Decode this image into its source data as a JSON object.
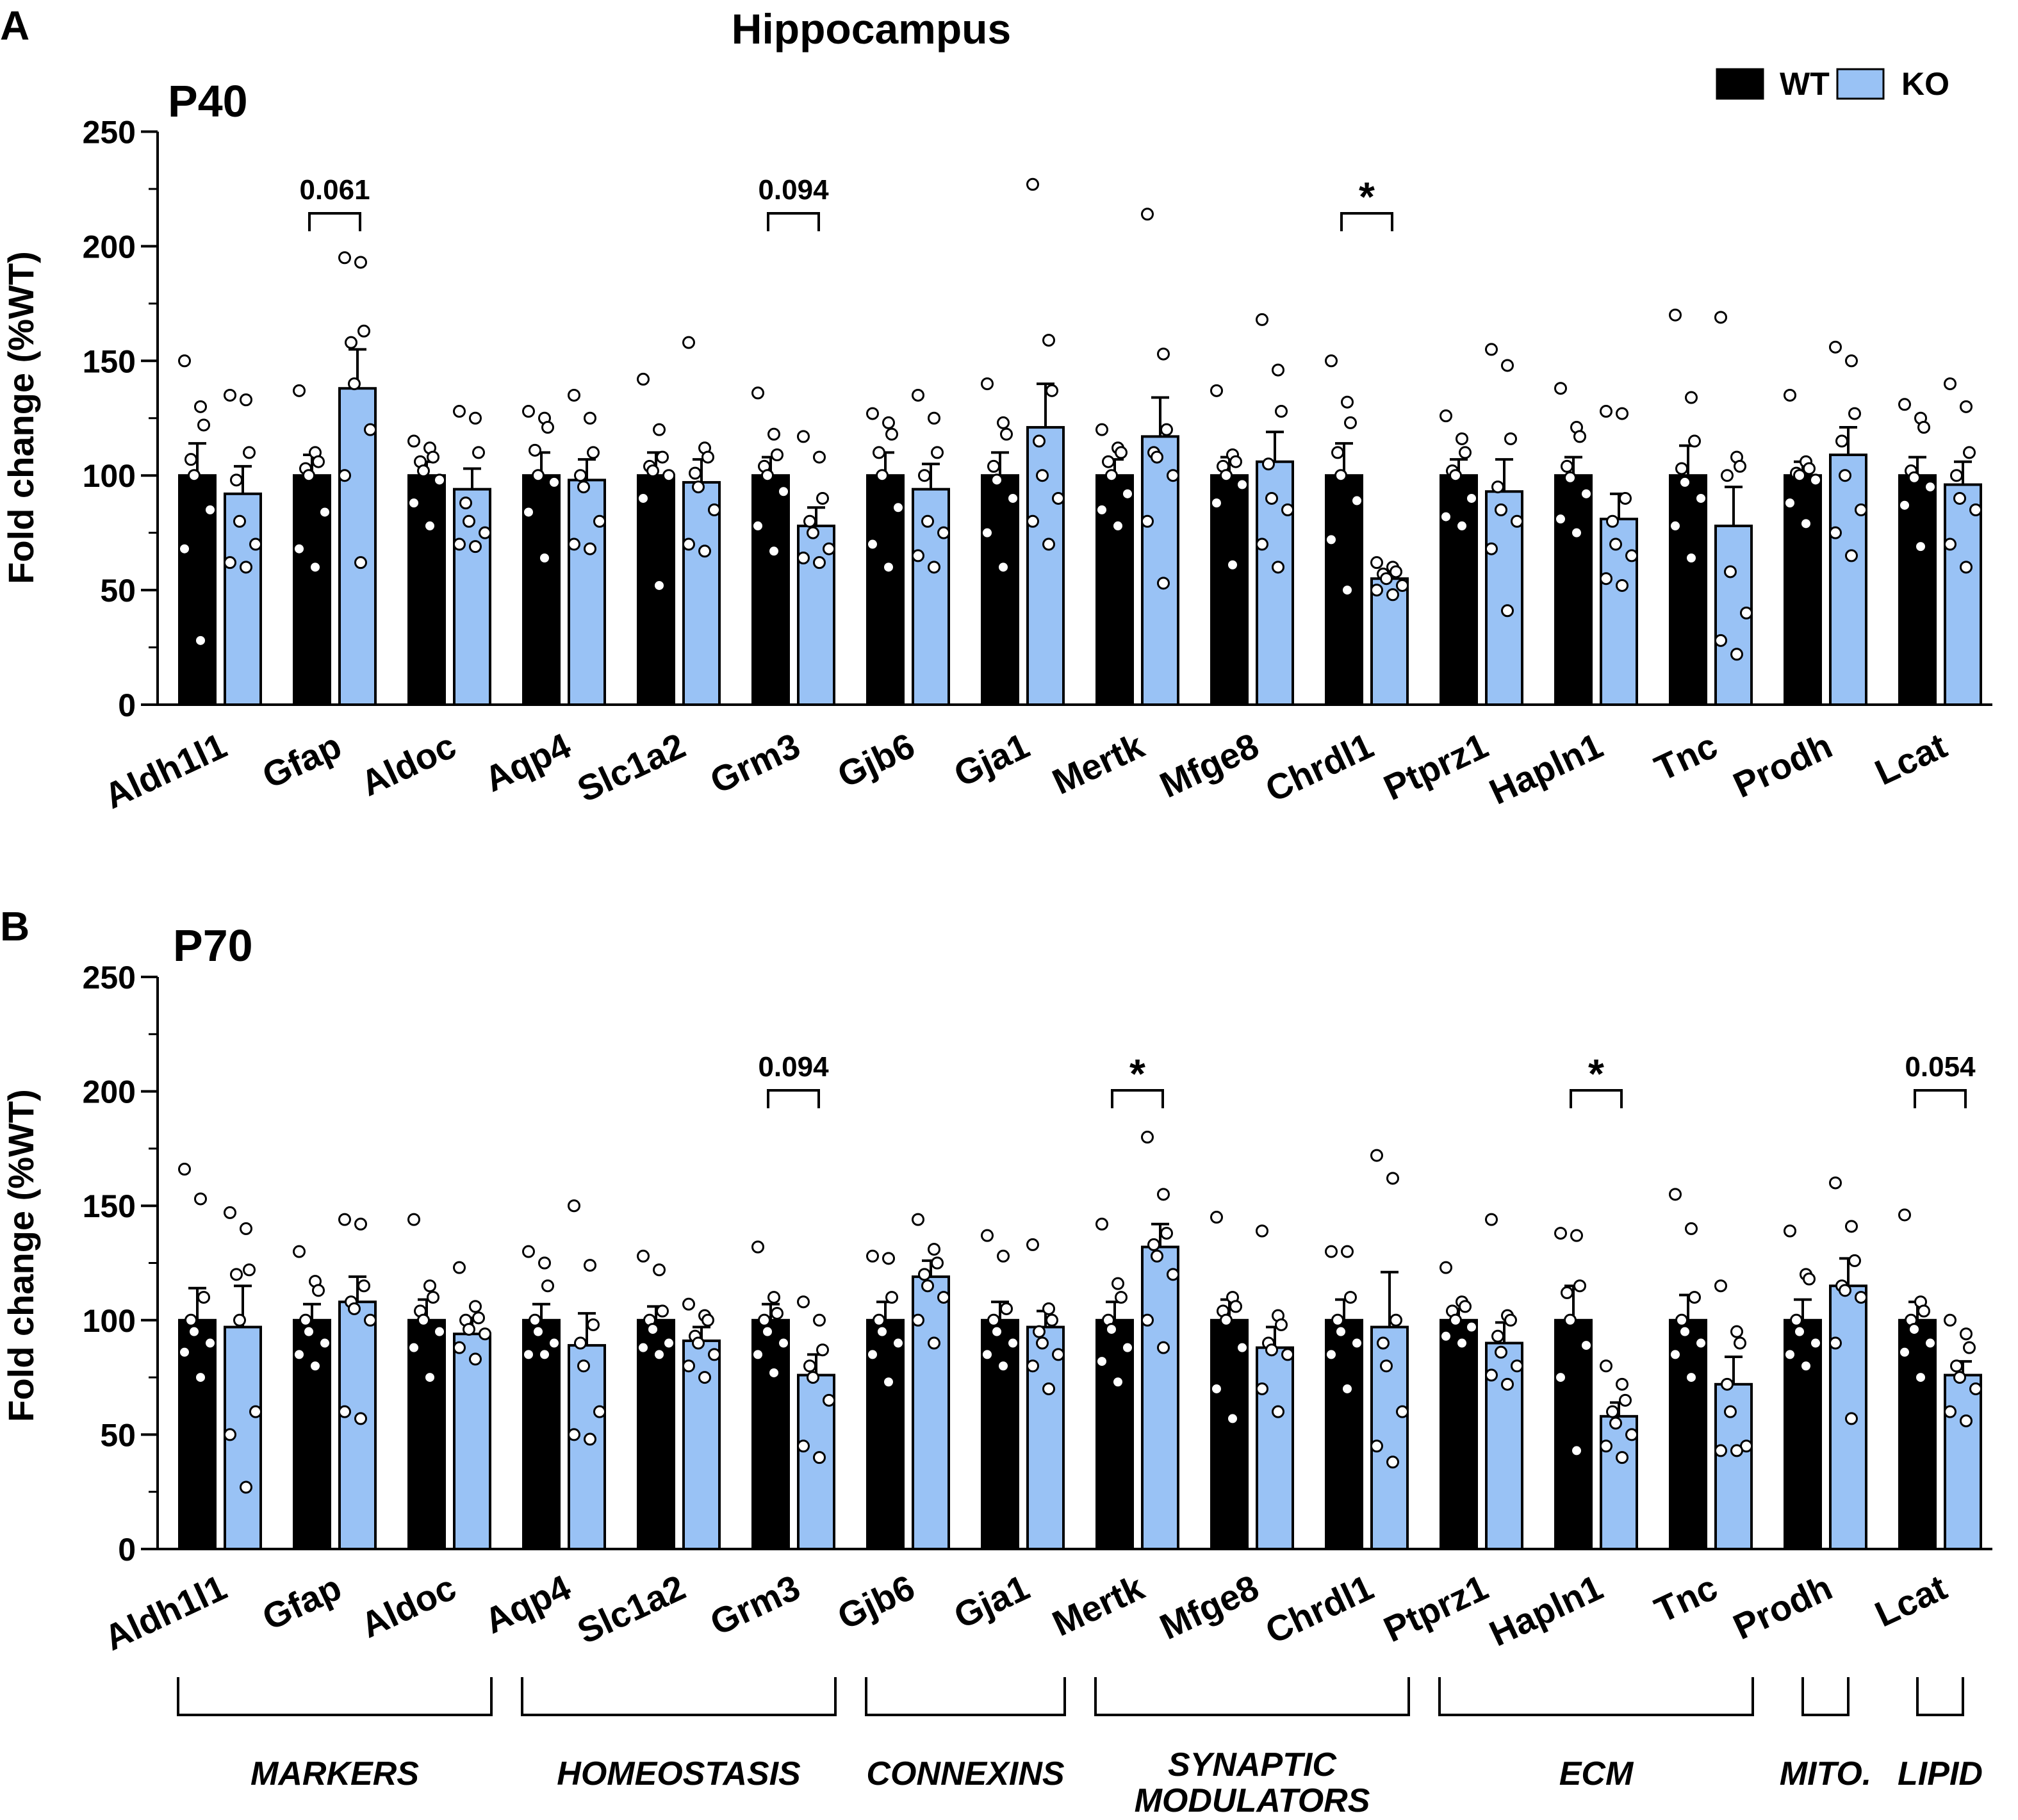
{
  "figure_title": "Hippocampus",
  "legend": [
    {
      "label": "WT",
      "color": "#000000"
    },
    {
      "label": "KO",
      "color": "#99c2f5"
    }
  ],
  "colors": {
    "wt": "#000000",
    "ko": "#99c2f5",
    "dot": "#ffffff"
  },
  "chart_data": [
    {
      "type": "bar",
      "panel_letter": "A",
      "title": "P40",
      "ylabel": "Fold change (%WT)",
      "ylim": [
        0,
        250
      ],
      "yticks": [
        "0",
        "50",
        "100",
        "150",
        "200",
        "250"
      ],
      "categories": [
        "Aldh1l1",
        "Gfap",
        "Aldoc",
        "Aqp4",
        "Slc1a2",
        "Grm3",
        "Gjb6",
        "Gja1",
        "Mertk",
        "Mfge8",
        "Chrdl1",
        "Ptprz1",
        "Hapln1",
        "Tnc",
        "Prodh",
        "Lcat"
      ],
      "series": [
        {
          "name": "WT",
          "values": [
            100,
            100,
            100,
            100,
            100,
            100,
            100,
            100,
            100,
            100,
            100,
            100,
            100,
            100,
            100,
            100
          ],
          "sem": [
            14,
            9,
            6,
            10,
            10,
            8,
            10,
            10,
            7,
            8,
            14,
            7,
            8,
            13,
            6,
            8
          ],
          "points": [
            [
              150,
              130,
              122,
              107,
              100,
              85,
              68,
              28
            ],
            [
              137,
              110,
              106,
              103,
              100,
              84,
              68,
              60
            ],
            [
              115,
              112,
              108,
              106,
              102,
              98,
              88,
              78
            ],
            [
              128,
              125,
              121,
              111,
              100,
              97,
              84,
              64
            ],
            [
              142,
              120,
              108,
              104,
              102,
              100,
              90,
              52
            ],
            [
              136,
              118,
              109,
              104,
              100,
              93,
              78,
              67
            ],
            [
              127,
              123,
              118,
              110,
              100,
              86,
              70,
              60
            ],
            [
              140,
              123,
              118,
              104,
              98,
              90,
              75,
              60
            ],
            [
              120,
              112,
              110,
              106,
              100,
              92,
              85,
              78
            ],
            [
              137,
              109,
              106,
              104,
              100,
              96,
              88,
              61
            ],
            [
              150,
              132,
              123,
              110,
              100,
              89,
              72,
              50
            ],
            [
              126,
              116,
              110,
              102,
              100,
              90,
              82,
              78
            ],
            [
              138,
              121,
              117,
              104,
              99,
              92,
              81,
              75
            ],
            [
              170,
              134,
              115,
              103,
              97,
              90,
              78,
              64
            ],
            [
              135,
              106,
              103,
              101,
              100,
              98,
              88,
              79
            ],
            [
              131,
              125,
              121,
              102,
              99,
              95,
              87,
              69
            ]
          ]
        },
        {
          "name": "KO",
          "values": [
            92,
            138,
            94,
            98,
            97,
            78,
            94,
            121,
            117,
            106,
            55,
            93,
            81,
            78,
            109,
            96
          ],
          "sem": [
            12,
            17,
            9,
            9,
            10,
            8,
            11,
            19,
            17,
            13,
            3,
            14,
            11,
            17,
            12,
            10
          ],
          "points": [
            [
              135,
              133,
              110,
              98,
              80,
              70,
              62,
              60
            ],
            [
              195,
              193,
              163,
              158,
              140,
              120,
              100,
              62
            ],
            [
              128,
              125,
              110,
              88,
              80,
              75,
              70,
              69
            ],
            [
              135,
              125,
              110,
              100,
              95,
              80,
              70,
              68
            ],
            [
              158,
              112,
              108,
              101,
              95,
              85,
              70,
              67
            ],
            [
              117,
              108,
              90,
              80,
              75,
              68,
              64,
              62
            ],
            [
              135,
              125,
              110,
              100,
              80,
              75,
              65,
              60
            ],
            [
              227,
              159,
              137,
              115,
              100,
              90,
              80,
              70
            ],
            [
              214,
              153,
              120,
              110,
              108,
              100,
              80,
              53
            ],
            [
              168,
              146,
              128,
              105,
              90,
              85,
              70,
              60
            ],
            [
              62,
              60,
              58,
              57,
              55,
              52,
              50,
              48
            ],
            [
              155,
              148,
              116,
              95,
              85,
              80,
              68,
              41
            ],
            [
              128,
              127,
              90,
              80,
              70,
              65,
              55,
              52
            ],
            [
              169,
              108,
              104,
              100,
              58,
              40,
              28,
              22
            ],
            [
              156,
              150,
              127,
              115,
              100,
              85,
              75,
              65
            ],
            [
              140,
              130,
              110,
              100,
              90,
              85,
              70,
              60
            ]
          ]
        }
      ],
      "significance": [
        {
          "category": "Gfap",
          "label": "0.061"
        },
        {
          "category": "Grm3",
          "label": "0.094"
        },
        {
          "category": "Chrdl1",
          "label": "*"
        }
      ]
    },
    {
      "type": "bar",
      "panel_letter": "B",
      "title": "P70",
      "ylabel": "Fold change (%WT)",
      "ylim": [
        0,
        250
      ],
      "yticks": [
        "0",
        "50",
        "100",
        "150",
        "200",
        "250"
      ],
      "categories": [
        "Aldh1l1",
        "Gfap",
        "Aldoc",
        "Aqp4",
        "Slc1a2",
        "Grm3",
        "Gjb6",
        "Gja1",
        "Mertk",
        "Mfge8",
        "Chrdl1",
        "Ptprz1",
        "Hapln1",
        "Tnc",
        "Prodh",
        "Lcat"
      ],
      "series": [
        {
          "name": "WT",
          "values": [
            100,
            100,
            100,
            100,
            100,
            100,
            100,
            100,
            100,
            100,
            100,
            100,
            100,
            100,
            100,
            100
          ],
          "sem": [
            14,
            7,
            9,
            7,
            6,
            7,
            8,
            8,
            8,
            9,
            9,
            5,
            15,
            11,
            9,
            8
          ],
          "points": [
            [
              166,
              153,
              110,
              100,
              95,
              90,
              86,
              75
            ],
            [
              130,
              117,
              113,
              100,
              95,
              90,
              85,
              80
            ],
            [
              144,
              115,
              110,
              104,
              100,
              95,
              88,
              75
            ],
            [
              130,
              125,
              115,
              100,
              95,
              90,
              85,
              85
            ],
            [
              128,
              122,
              104,
              100,
              96,
              90,
              88,
              85
            ],
            [
              132,
              110,
              103,
              100,
              95,
              90,
              85,
              77
            ],
            [
              128,
              127,
              110,
              100,
              95,
              90,
              85,
              73
            ],
            [
              137,
              128,
              105,
              100,
              95,
              90,
              85,
              80
            ],
            [
              142,
              116,
              110,
              100,
              96,
              88,
              82,
              73
            ],
            [
              145,
              110,
              106,
              104,
              100,
              88,
              70,
              57
            ],
            [
              130,
              130,
              110,
              100,
              95,
              90,
              85,
              70
            ],
            [
              123,
              108,
              106,
              104,
              100,
              97,
              93,
              90
            ],
            [
              138,
              137,
              115,
              112,
              100,
              89,
              75,
              43
            ],
            [
              155,
              140,
              110,
              100,
              95,
              90,
              85,
              75
            ],
            [
              139,
              120,
              118,
              100,
              95,
              90,
              85,
              80
            ],
            [
              146,
              108,
              104,
              100,
              96,
              90,
              86,
              75
            ]
          ]
        },
        {
          "name": "KO",
          "values": [
            97,
            108,
            94,
            89,
            91,
            76,
            119,
            97,
            132,
            88,
            97,
            90,
            58,
            72,
            115,
            76
          ],
          "sem": [
            18,
            11,
            7,
            14,
            6,
            9,
            7,
            7,
            10,
            9,
            24,
            9,
            6,
            12,
            12,
            6
          ],
          "points": [
            [
              147,
              140,
              122,
              120,
              100,
              60,
              50,
              27
            ],
            [
              144,
              142,
              115,
              108,
              105,
              100,
              60,
              57
            ],
            [
              123,
              106,
              101,
              100,
              96,
              94,
              88,
              83
            ],
            [
              150,
              124,
              98,
              90,
              80,
              60,
              50,
              48
            ],
            [
              107,
              102,
              100,
              93,
              90,
              85,
              80,
              75
            ],
            [
              108,
              100,
              87,
              80,
              75,
              65,
              45,
              40
            ],
            [
              144,
              131,
              125,
              120,
              115,
              110,
              100,
              90
            ],
            [
              133,
              105,
              100,
              95,
              90,
              85,
              80,
              70
            ],
            [
              180,
              155,
              138,
              133,
              128,
              120,
              100,
              88
            ],
            [
              139,
              102,
              98,
              90,
              87,
              85,
              70,
              60
            ],
            [
              172,
              162,
              100,
              90,
              80,
              60,
              45,
              38
            ],
            [
              144,
              102,
              100,
              93,
              86,
              80,
              76,
              72
            ],
            [
              80,
              72,
              65,
              60,
              55,
              50,
              45,
              40
            ],
            [
              115,
              95,
              90,
              72,
              60,
              45,
              43,
              43
            ],
            [
              160,
              141,
              126,
              115,
              113,
              110,
              90,
              57
            ],
            [
              100,
              94,
              88,
              80,
              75,
              70,
              60,
              56
            ]
          ]
        }
      ],
      "significance": [
        {
          "category": "Grm3",
          "label": "0.094"
        },
        {
          "category": "Mertk",
          "label": "*"
        },
        {
          "category": "Hapln1",
          "label": "*"
        },
        {
          "category": "Lcat",
          "label": "0.054"
        }
      ]
    }
  ],
  "groups": [
    {
      "label": "MARKERS",
      "from": 0,
      "to": 2
    },
    {
      "label": "HOMEOSTASIS",
      "from": 3,
      "to": 5
    },
    {
      "label": "CONNEXINS",
      "from": 6,
      "to": 7
    },
    {
      "label": "SYNAPTIC MODULATORS",
      "from": 8,
      "to": 10
    },
    {
      "label": "ECM",
      "from": 11,
      "to": 13
    },
    {
      "label": "MITO.",
      "from": 14,
      "to": 14
    },
    {
      "label": "LIPID",
      "from": 15,
      "to": 15
    }
  ]
}
